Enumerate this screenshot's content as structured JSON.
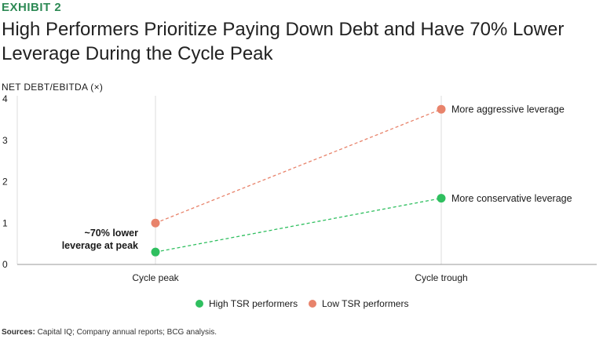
{
  "header": {
    "exhibit": "EXHIBIT 2",
    "title": "High Performers Prioritize Paying Down Debt and Have 70% Lower Leverage During the Cycle Peak"
  },
  "footer": {
    "source_label": "Sources:",
    "source_text": "Capital IQ; Company annual reports; BCG analysis."
  },
  "colors": {
    "high": "#2fbf5f",
    "low": "#e8836b",
    "exhibit": "#2e8a55",
    "grid": "#dddddd",
    "axis": "#999999"
  },
  "chart_data": {
    "type": "line",
    "ylabel": "NET DEBT/EBITDA (×)",
    "xlabel": "",
    "categories": [
      "Cycle peak",
      "Cycle trough"
    ],
    "ylim": [
      0,
      4
    ],
    "yticks": [
      0,
      1,
      2,
      3,
      4
    ],
    "series": [
      {
        "name": "High TSR performers",
        "color": "#2fbf5f",
        "values": [
          0.3,
          1.6
        ],
        "end_label": "More conservative leverage"
      },
      {
        "name": "Low TSR performers",
        "color": "#e8836b",
        "values": [
          1.0,
          3.75
        ],
        "end_label": "More aggressive leverage"
      }
    ],
    "annotation": {
      "lines": [
        "~70% lower",
        "leverage at peak"
      ]
    },
    "legend": "bottom-center",
    "grid": false
  }
}
